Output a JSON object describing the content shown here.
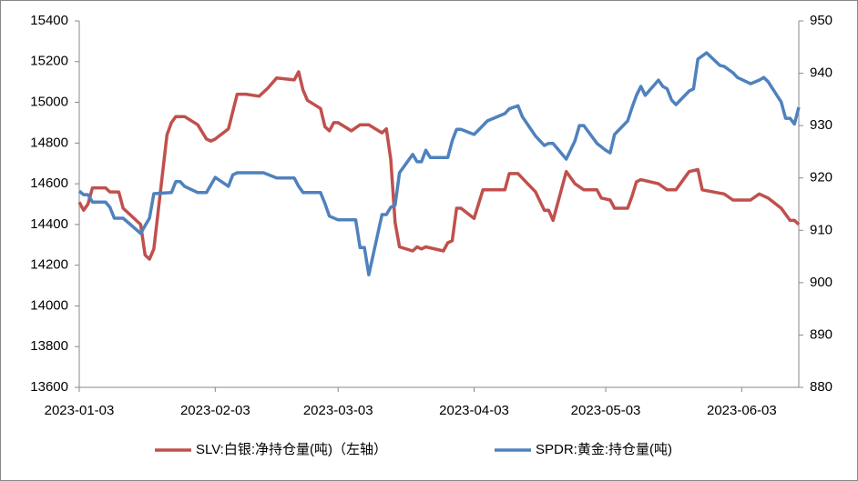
{
  "chart_data": {
    "type": "line",
    "xlim": [
      "2023-01-03",
      "2023-06-16"
    ],
    "xticks": [
      "2023-01-03",
      "2023-02-03",
      "2023-03-03",
      "2023-04-03",
      "2023-05-03",
      "2023-06-03"
    ],
    "ylim": [
      13600,
      15400
    ],
    "yticks": [
      13600,
      13800,
      14000,
      14200,
      14400,
      14600,
      14800,
      15000,
      15200,
      15400
    ],
    "y2lim": [
      880,
      950
    ],
    "y2ticks": [
      880,
      890,
      900,
      910,
      920,
      930,
      940,
      950
    ],
    "legend": "bottom",
    "series": [
      {
        "name": "SLV:白银:净持仓量(吨)（左轴）",
        "color": "#c0504d",
        "axis": "y",
        "x": [
          "2023-01-03",
          "2023-01-04",
          "2023-01-05",
          "2023-01-06",
          "2023-01-09",
          "2023-01-10",
          "2023-01-12",
          "2023-01-13",
          "2023-01-17",
          "2023-01-18",
          "2023-01-19",
          "2023-01-20",
          "2023-01-23",
          "2023-01-24",
          "2023-01-25",
          "2023-01-27",
          "2023-01-30",
          "2023-02-01",
          "2023-02-02",
          "2023-02-03",
          "2023-02-06",
          "2023-02-08",
          "2023-02-10",
          "2023-02-13",
          "2023-02-15",
          "2023-02-17",
          "2023-02-21",
          "2023-02-22",
          "2023-02-23",
          "2023-02-24",
          "2023-02-27",
          "2023-02-28",
          "2023-03-01",
          "2023-03-02",
          "2023-03-03",
          "2023-03-06",
          "2023-03-08",
          "2023-03-10",
          "2023-03-13",
          "2023-03-14",
          "2023-03-15",
          "2023-03-16",
          "2023-03-17",
          "2023-03-20",
          "2023-03-21",
          "2023-03-22",
          "2023-03-23",
          "2023-03-27",
          "2023-03-28",
          "2023-03-29",
          "2023-03-30",
          "2023-03-31",
          "2023-04-03",
          "2023-04-05",
          "2023-04-10",
          "2023-04-11",
          "2023-04-13",
          "2023-04-17",
          "2023-04-19",
          "2023-04-20",
          "2023-04-21",
          "2023-04-24",
          "2023-04-26",
          "2023-04-28",
          "2023-05-01",
          "2023-05-02",
          "2023-05-04",
          "2023-05-05",
          "2023-05-08",
          "2023-05-09",
          "2023-05-10",
          "2023-05-11",
          "2023-05-15",
          "2023-05-17",
          "2023-05-19",
          "2023-05-22",
          "2023-05-24",
          "2023-05-25",
          "2023-05-30",
          "2023-06-01",
          "2023-06-05",
          "2023-06-07",
          "2023-06-09",
          "2023-06-12",
          "2023-06-14",
          "2023-06-15",
          "2023-06-16"
        ],
        "values": [
          14510,
          14470,
          14500,
          14580,
          14580,
          14560,
          14560,
          14480,
          14400,
          14250,
          14230,
          14280,
          14840,
          14900,
          14930,
          14930,
          14890,
          14820,
          14810,
          14820,
          14870,
          15040,
          15040,
          15030,
          15070,
          15120,
          15110,
          15150,
          15060,
          15010,
          14970,
          14880,
          14860,
          14900,
          14900,
          14860,
          14890,
          14890,
          14850,
          14870,
          14720,
          14410,
          14290,
          14270,
          14290,
          14280,
          14290,
          14270,
          14310,
          14320,
          14480,
          14480,
          14430,
          14570,
          14570,
          14650,
          14650,
          14560,
          14470,
          14470,
          14420,
          14660,
          14600,
          14570,
          14570,
          14530,
          14520,
          14480,
          14480,
          14540,
          14610,
          14620,
          14600,
          14570,
          14570,
          14660,
          14670,
          14570,
          14550,
          14520,
          14520,
          14550,
          14530,
          14480,
          14420,
          14420,
          14400
        ]
      },
      {
        "name": "SPDR:黄金:持仓量(吨)",
        "color": "#4f81bd",
        "axis": "y2",
        "x": [
          "2023-01-03",
          "2023-01-04",
          "2023-01-05",
          "2023-01-06",
          "2023-01-09",
          "2023-01-10",
          "2023-01-11",
          "2023-01-13",
          "2023-01-17",
          "2023-01-18",
          "2023-01-19",
          "2023-01-20",
          "2023-01-24",
          "2023-01-25",
          "2023-01-26",
          "2023-01-27",
          "2023-01-30",
          "2023-02-01",
          "2023-02-03",
          "2023-02-06",
          "2023-02-07",
          "2023-02-08",
          "2023-02-14",
          "2023-02-17",
          "2023-02-21",
          "2023-02-22",
          "2023-02-23",
          "2023-02-24",
          "2023-02-27",
          "2023-02-28",
          "2023-03-01",
          "2023-03-03",
          "2023-03-07",
          "2023-03-08",
          "2023-03-09",
          "2023-03-10",
          "2023-03-13",
          "2023-03-14",
          "2023-03-15",
          "2023-03-16",
          "2023-03-17",
          "2023-03-20",
          "2023-03-21",
          "2023-03-22",
          "2023-03-23",
          "2023-03-24",
          "2023-03-28",
          "2023-03-29",
          "2023-03-30",
          "2023-03-31",
          "2023-04-03",
          "2023-04-05",
          "2023-04-06",
          "2023-04-10",
          "2023-04-11",
          "2023-04-12",
          "2023-04-13",
          "2023-04-14",
          "2023-04-17",
          "2023-04-18",
          "2023-04-19",
          "2023-04-20",
          "2023-04-21",
          "2023-04-24",
          "2023-04-26",
          "2023-04-27",
          "2023-04-28",
          "2023-05-01",
          "2023-05-03",
          "2023-05-04",
          "2023-05-05",
          "2023-05-08",
          "2023-05-09",
          "2023-05-10",
          "2023-05-11",
          "2023-05-12",
          "2023-05-15",
          "2023-05-16",
          "2023-05-17",
          "2023-05-18",
          "2023-05-19",
          "2023-05-22",
          "2023-05-23",
          "2023-05-24",
          "2023-05-26",
          "2023-05-29",
          "2023-05-30",
          "2023-06-01",
          "2023-06-02",
          "2023-06-05",
          "2023-06-07",
          "2023-06-08",
          "2023-06-09",
          "2023-06-12",
          "2023-06-13",
          "2023-06-14",
          "2023-06-15",
          "2023-06-16"
        ],
        "values": [
          917.5,
          916.8,
          916.8,
          915.4,
          915.4,
          914.4,
          912.3,
          912.3,
          909.4,
          910.9,
          912.3,
          917.0,
          917.2,
          919.3,
          919.3,
          918.4,
          917.2,
          917.2,
          920.1,
          918.4,
          920.6,
          921.0,
          921.0,
          920.0,
          920.0,
          918.4,
          917.2,
          917.2,
          917.2,
          915.1,
          912.7,
          912.0,
          912.0,
          906.7,
          906.7,
          901.5,
          913.0,
          913.0,
          914.4,
          914.8,
          921.0,
          924.5,
          923.1,
          923.1,
          925.3,
          923.9,
          923.9,
          927.1,
          929.3,
          929.3,
          928.3,
          930.0,
          930.9,
          932.3,
          933.2,
          933.5,
          933.8,
          931.7,
          928.0,
          927.1,
          926.2,
          926.6,
          926.6,
          923.6,
          927.1,
          930.0,
          930.0,
          926.6,
          925.3,
          924.8,
          928.3,
          930.9,
          933.5,
          935.8,
          937.5,
          935.8,
          938.7,
          937.5,
          937.0,
          934.9,
          934.0,
          936.6,
          937.0,
          942.7,
          943.9,
          941.5,
          941.3,
          940.1,
          939.2,
          938.0,
          938.7,
          939.2,
          938.4,
          934.5,
          931.4,
          931.4,
          930.3,
          933.5
        ]
      }
    ]
  }
}
